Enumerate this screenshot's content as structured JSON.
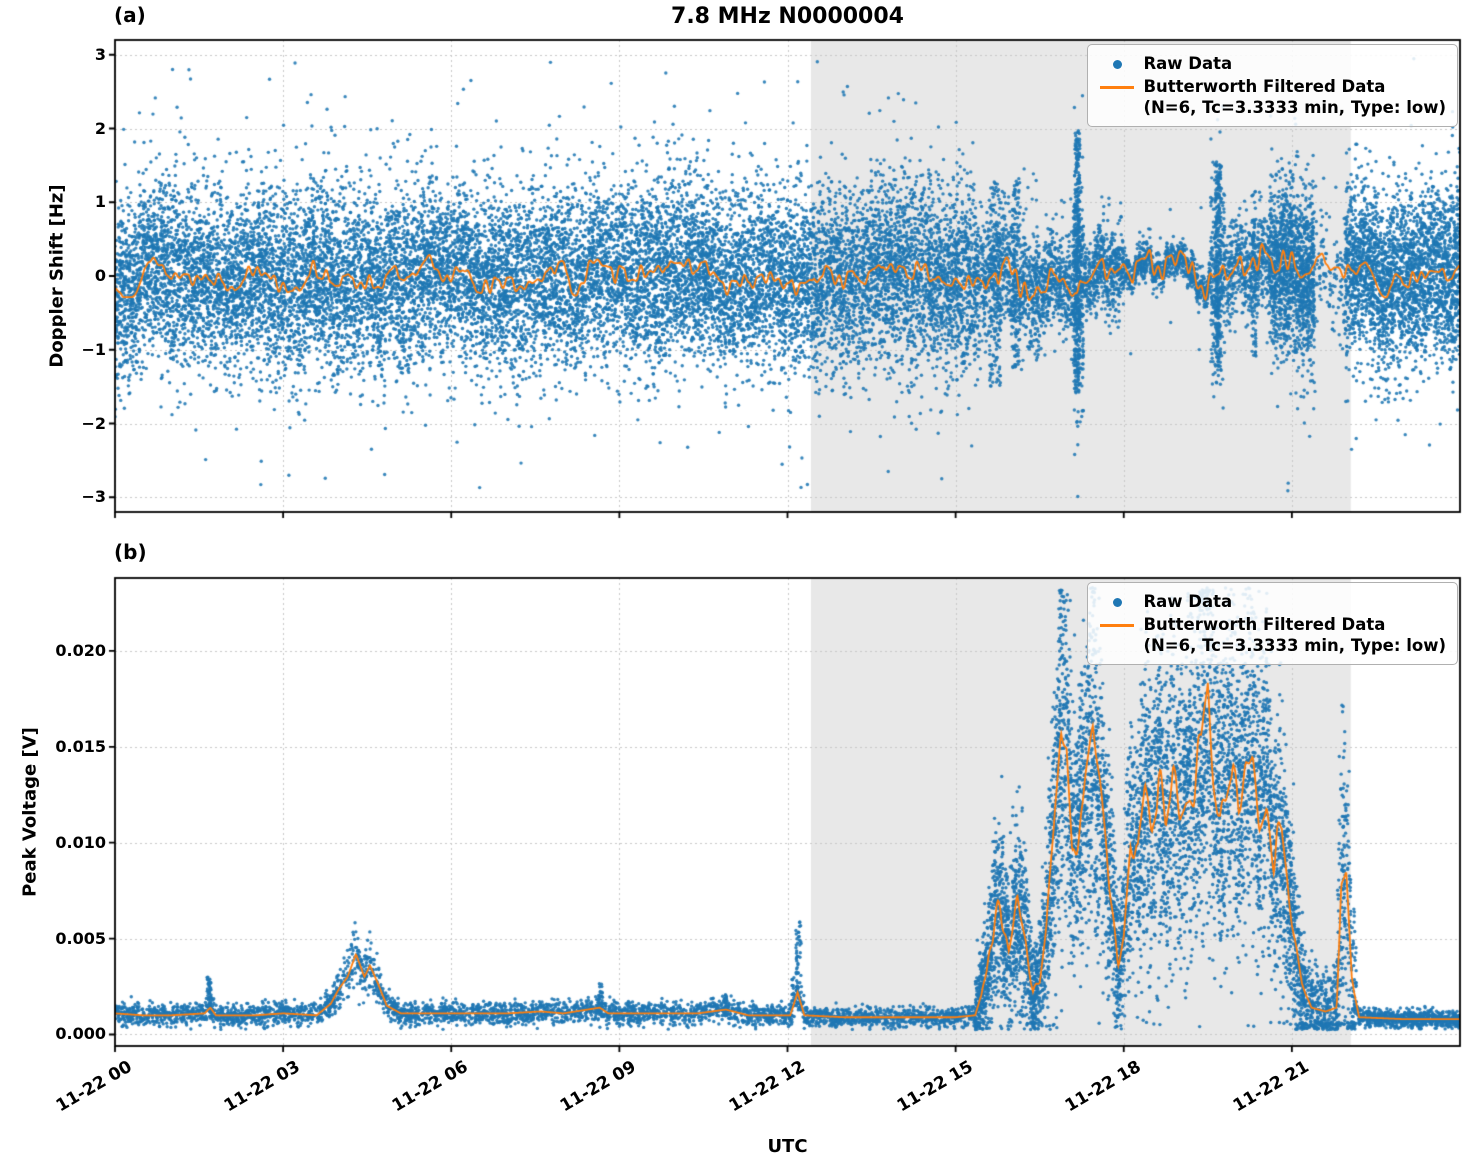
{
  "figure": {
    "title": "7.8 MHz N0000004",
    "xlabel": "UTC",
    "panel_a_label": "(a)",
    "panel_b_label": "(b)",
    "legend": {
      "raw_label": "Raw Data",
      "filtered_line1": "Butterworth Filtered Data",
      "filtered_line2": "(N=6, Tc=3.3333 min, Type: low)"
    },
    "colors": {
      "raw": "#1f77b4",
      "filtered": "#ff7f0e",
      "shade": "#e8e8e8",
      "grid": "#c9c9c9",
      "spine": "#000000",
      "background": "#ffffff"
    }
  },
  "chart_data": [
    {
      "type": "scatter",
      "panel": "a",
      "ylabel": "Doppler Shift [Hz]",
      "ylim": [
        -3.2,
        3.2
      ],
      "yticks": [
        3,
        2,
        1,
        0,
        -1,
        -2,
        -3
      ],
      "ytick_labels": [
        "3",
        "2",
        "1",
        "0",
        "−1",
        "−2",
        "−3"
      ],
      "x_range_hours": [
        0,
        24
      ],
      "xticks_hours": [
        0,
        3,
        6,
        9,
        12,
        15,
        18,
        21
      ],
      "xtick_labels": [
        "11-22 00",
        "11-22 03",
        "11-22 06",
        "11-22 09",
        "11-22 12",
        "11-22 15",
        "11-22 18",
        "11-22 21"
      ],
      "shade_hours": [
        12.42,
        22.05
      ],
      "series": [
        {
          "name": "Raw Data",
          "style": "scatter"
        },
        {
          "name": "Butterworth Filtered Data (N=6, Tc=3.3333 min, Type: low)",
          "style": "line"
        }
      ],
      "filtered_profile": {
        "base_amplitude": 0.3,
        "active_hours": [
          15.7,
          21.3
        ],
        "active_amplitude": 0.46
      },
      "raw_segments": [
        {
          "h0": 0.0,
          "h1": 15.4,
          "center": 0.0,
          "sigma": 0.58,
          "count": 15500
        },
        {
          "h0": 15.4,
          "h1": 16.5,
          "center": 0.0,
          "sigma": 0.42,
          "count": 850
        },
        {
          "h0": 16.5,
          "h1": 17.1,
          "center": 0.0,
          "sigma": 0.3,
          "count": 430
        },
        {
          "h0": 17.1,
          "h1": 17.28,
          "center": 0.1,
          "sigma": 0.75,
          "count": 320
        },
        {
          "h0": 17.28,
          "h1": 18.0,
          "center": 0.0,
          "sigma": 0.27,
          "count": 520
        },
        {
          "h0": 18.0,
          "h1": 19.55,
          "center": 0.0,
          "sigma": 0.11,
          "count": 850,
          "out_frac": 0.02,
          "out_mult": 7
        },
        {
          "h0": 19.55,
          "h1": 19.8,
          "center": 0.0,
          "sigma": 0.6,
          "count": 280
        },
        {
          "h0": 19.8,
          "h1": 20.6,
          "center": 0.0,
          "sigma": 0.3,
          "count": 520
        },
        {
          "h0": 20.6,
          "h1": 21.4,
          "center": -0.05,
          "sigma": 0.55,
          "count": 1400
        },
        {
          "h0": 21.4,
          "h1": 21.95,
          "center": -0.15,
          "sigma": 0.35,
          "count": 110
        },
        {
          "h0": 21.95,
          "h1": 24.0,
          "center": 0.0,
          "sigma": 0.55,
          "count": 2700
        }
      ],
      "raw_spikes": [
        {
          "h": 12.53,
          "w": 0.005,
          "ymin": 2.88,
          "ymax": 2.94,
          "count": 1
        },
        {
          "h": 15.7,
          "w": 0.1,
          "ymin": -1.5,
          "ymax": 1.3,
          "count": 130
        },
        {
          "h": 16.08,
          "w": 0.07,
          "ymin": -1.25,
          "ymax": 1.35,
          "count": 110
        },
        {
          "h": 17.17,
          "w": 0.05,
          "ymin": -1.6,
          "ymax": 1.95,
          "count": 300
        },
        {
          "h": 19.68,
          "w": 0.05,
          "ymin": -1.35,
          "ymax": 1.55,
          "count": 220
        },
        {
          "h": 20.32,
          "w": 0.04,
          "ymin": -1.1,
          "ymax": 1.2,
          "count": 70
        }
      ]
    },
    {
      "type": "scatter",
      "panel": "b",
      "ylabel": "Peak Voltage [V]",
      "ylim": [
        -0.0006,
        0.0238
      ],
      "yticks": [
        0.02,
        0.015,
        0.01,
        0.005,
        0
      ],
      "ytick_labels": [
        "0.020",
        "0.015",
        "0.010",
        "0.005",
        "0.000"
      ],
      "x_range_hours": [
        0,
        24
      ],
      "xticks_hours": [
        0,
        3,
        6,
        9,
        12,
        15,
        18,
        21
      ],
      "xtick_labels": [
        "11-22 00",
        "11-22 03",
        "11-22 06",
        "11-22 09",
        "11-22 12",
        "11-22 15",
        "11-22 18",
        "11-22 21"
      ],
      "shade_hours": [
        12.42,
        22.05
      ],
      "series": [
        {
          "name": "Raw Data",
          "style": "scatter"
        },
        {
          "name": "Butterworth Filtered Data (N=6, Tc=3.3333 min, Type: low)",
          "style": "line"
        }
      ],
      "filtered_points": [
        [
          0,
          0.0011
        ],
        [
          0.5,
          0.001
        ],
        [
          1.0,
          0.001
        ],
        [
          1.6,
          0.0011
        ],
        [
          1.7,
          0.0014
        ],
        [
          1.8,
          0.001
        ],
        [
          2.5,
          0.001
        ],
        [
          3.0,
          0.0011
        ],
        [
          3.6,
          0.001
        ],
        [
          3.85,
          0.0016
        ],
        [
          4.0,
          0.0024
        ],
        [
          4.15,
          0.003
        ],
        [
          4.3,
          0.0042
        ],
        [
          4.45,
          0.003
        ],
        [
          4.55,
          0.0036
        ],
        [
          4.7,
          0.0026
        ],
        [
          4.85,
          0.0015
        ],
        [
          5.1,
          0.0011
        ],
        [
          6.0,
          0.0011
        ],
        [
          7.0,
          0.0011
        ],
        [
          7.6,
          0.0012
        ],
        [
          8.0,
          0.0011
        ],
        [
          8.65,
          0.0014
        ],
        [
          8.8,
          0.0011
        ],
        [
          9.5,
          0.0011
        ],
        [
          10.4,
          0.0011
        ],
        [
          10.9,
          0.0013
        ],
        [
          11.3,
          0.001
        ],
        [
          12.05,
          0.001
        ],
        [
          12.18,
          0.0022
        ],
        [
          12.3,
          0.001
        ],
        [
          13.0,
          0.0009
        ],
        [
          14.0,
          0.0009
        ],
        [
          15.0,
          0.0009
        ],
        [
          15.35,
          0.001
        ],
        [
          15.55,
          0.003
        ],
        [
          15.7,
          0.006
        ],
        [
          15.8,
          0.0066
        ],
        [
          15.95,
          0.0042
        ],
        [
          16.1,
          0.0068
        ],
        [
          16.25,
          0.0048
        ],
        [
          16.38,
          0.0022
        ],
        [
          16.5,
          0.0028
        ],
        [
          16.62,
          0.0055
        ],
        [
          16.75,
          0.01
        ],
        [
          16.88,
          0.0158
        ],
        [
          16.98,
          0.0148
        ],
        [
          17.08,
          0.0092
        ],
        [
          17.2,
          0.0108
        ],
        [
          17.32,
          0.0128
        ],
        [
          17.45,
          0.0152
        ],
        [
          17.55,
          0.013
        ],
        [
          17.65,
          0.0108
        ],
        [
          17.78,
          0.0072
        ],
        [
          17.9,
          0.0038
        ],
        [
          18.0,
          0.0052
        ],
        [
          18.12,
          0.0102
        ],
        [
          18.25,
          0.0092
        ],
        [
          18.38,
          0.0128
        ],
        [
          18.5,
          0.0112
        ],
        [
          18.62,
          0.0135
        ],
        [
          18.75,
          0.0105
        ],
        [
          18.88,
          0.0132
        ],
        [
          19.0,
          0.0112
        ],
        [
          19.12,
          0.0125
        ],
        [
          19.25,
          0.0132
        ],
        [
          19.38,
          0.0148
        ],
        [
          19.5,
          0.0185
        ],
        [
          19.6,
          0.0142
        ],
        [
          19.72,
          0.0122
        ],
        [
          19.85,
          0.0142
        ],
        [
          19.95,
          0.0152
        ],
        [
          20.05,
          0.0122
        ],
        [
          20.18,
          0.0142
        ],
        [
          20.3,
          0.015
        ],
        [
          20.42,
          0.0118
        ],
        [
          20.55,
          0.0128
        ],
        [
          20.68,
          0.0092
        ],
        [
          20.82,
          0.0105
        ],
        [
          20.95,
          0.0068
        ],
        [
          21.05,
          0.0048
        ],
        [
          21.18,
          0.0026
        ],
        [
          21.35,
          0.0014
        ],
        [
          21.6,
          0.0012
        ],
        [
          21.8,
          0.0014
        ],
        [
          21.88,
          0.0078
        ],
        [
          21.97,
          0.0082
        ],
        [
          22.07,
          0.0028
        ],
        [
          22.2,
          0.0009
        ],
        [
          23.0,
          0.0008
        ],
        [
          24,
          0.0008
        ]
      ],
      "raw_segments": [
        {
          "h0": 0,
          "h1": 15.35,
          "count": 3800,
          "abs": 0.00012,
          "rel": 0.16
        },
        {
          "h0": 15.35,
          "h1": 21.25,
          "count": 6200,
          "abs": 0.0008,
          "rel": 0.26
        },
        {
          "h0": 21.25,
          "h1": 21.8,
          "count": 300,
          "abs": 0.0006,
          "rel": 0.3
        },
        {
          "h0": 21.8,
          "h1": 22.15,
          "count": 280,
          "abs": 0.0014,
          "rel": 0.35
        },
        {
          "h0": 22.15,
          "h1": 24,
          "count": 750,
          "abs": 0.0001,
          "rel": 0.16
        }
      ],
      "raw_spikes": [
        {
          "h": 1.68,
          "w": 0.04,
          "ymin": 0.0012,
          "ymax": 0.0031,
          "count": 35
        },
        {
          "h": 8.66,
          "w": 0.04,
          "ymin": 0.0012,
          "ymax": 0.0028,
          "count": 28
        },
        {
          "h": 10.9,
          "w": 0.04,
          "ymin": 0.0012,
          "ymax": 0.0021,
          "count": 22
        },
        {
          "h": 12.1,
          "w": 0.03,
          "ymin": 0.0012,
          "ymax": 0.003,
          "count": 20
        },
        {
          "h": 12.2,
          "w": 0.05,
          "ymin": 0.0012,
          "ymax": 0.006,
          "count": 60
        }
      ]
    }
  ]
}
